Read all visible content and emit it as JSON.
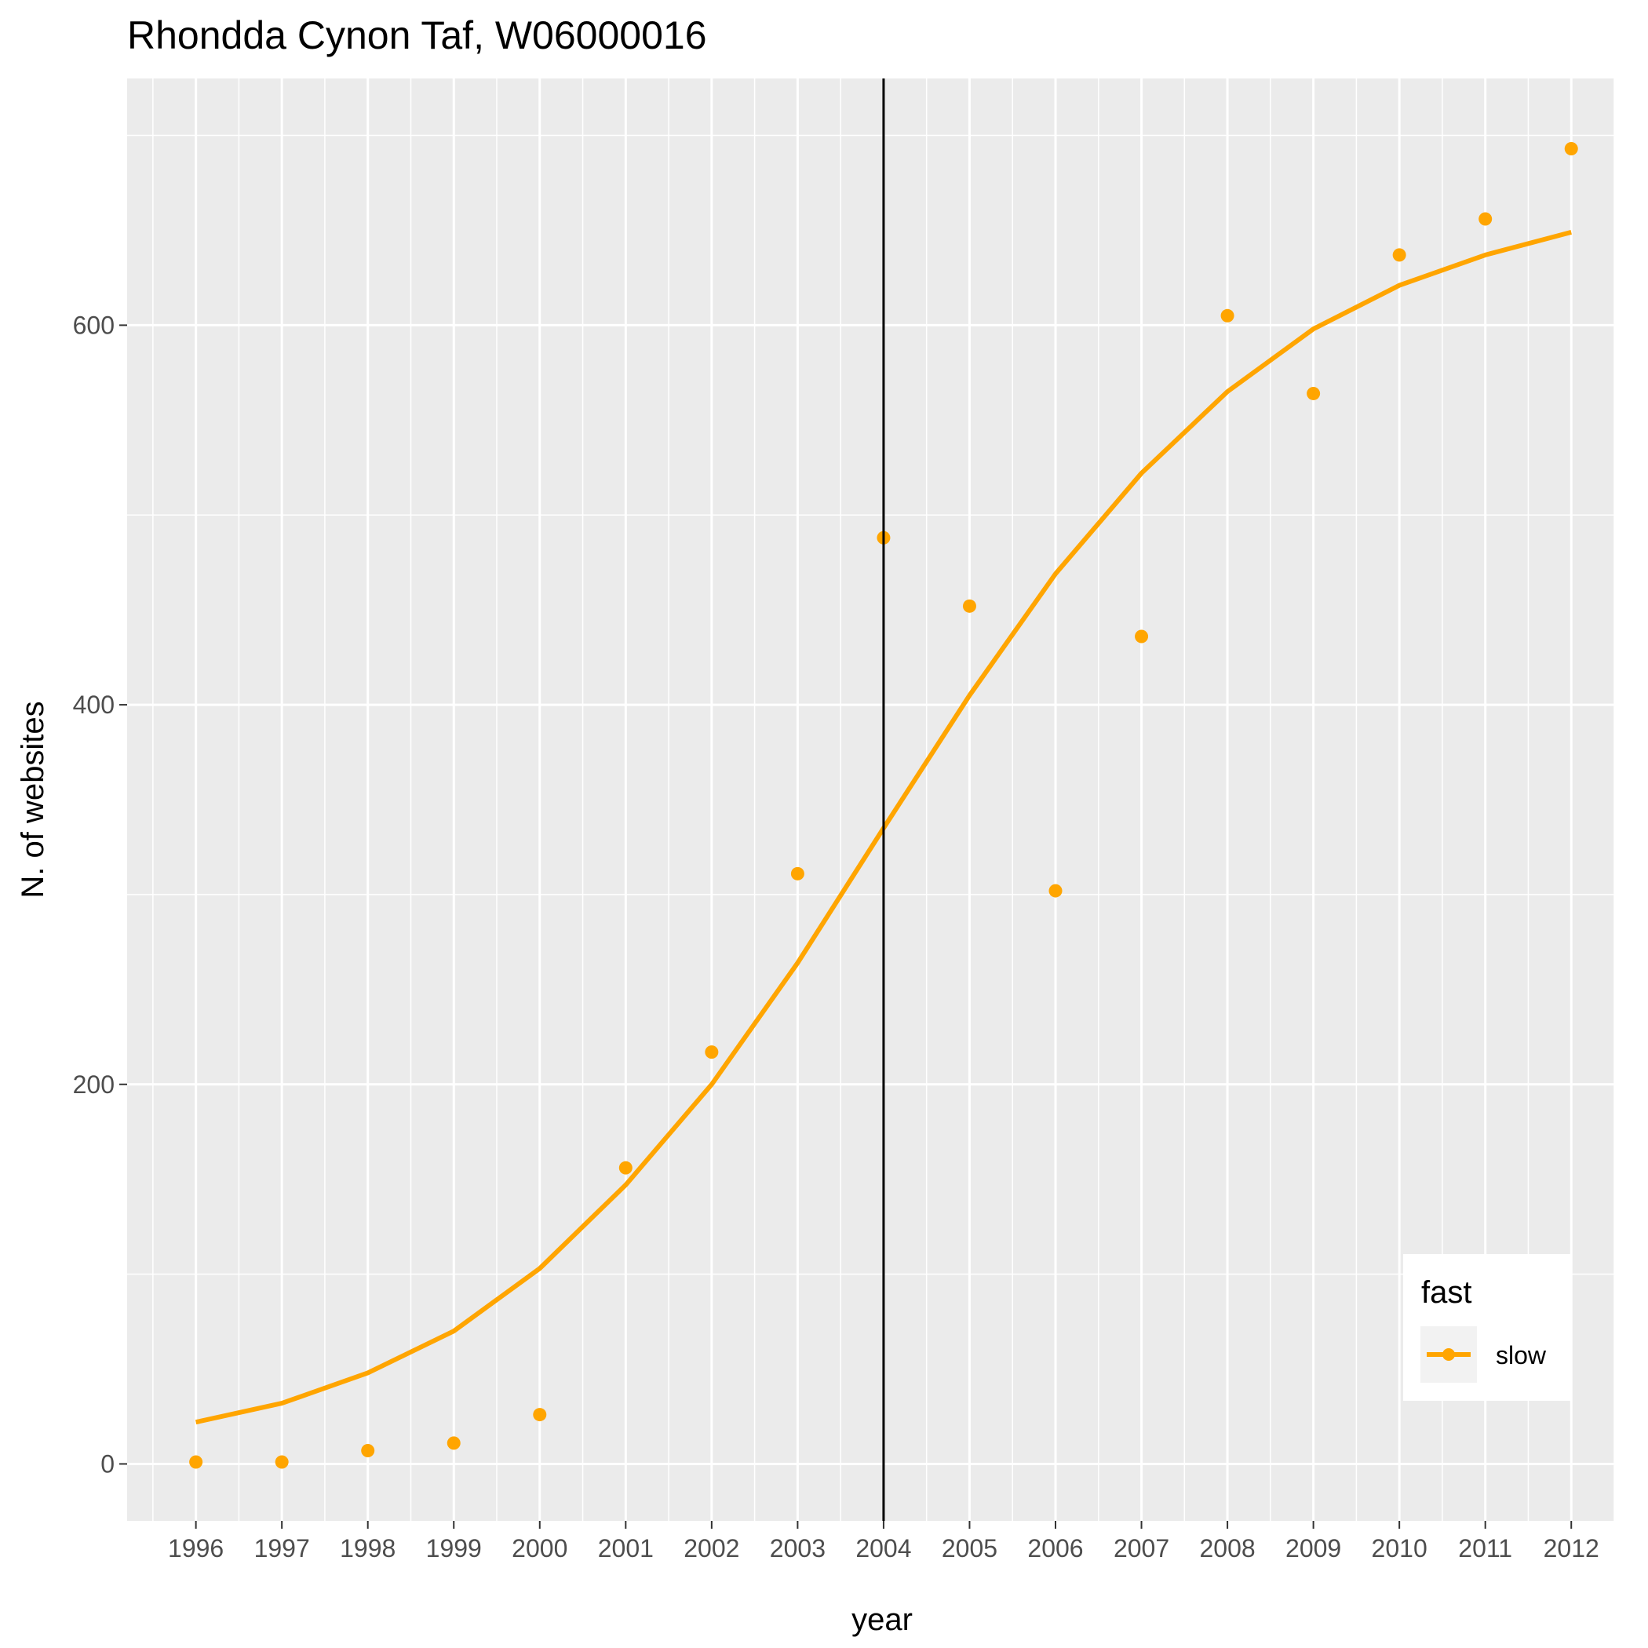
{
  "chart_data": {
    "type": "line",
    "title": "Rhondda Cynon Taf, W06000016",
    "xlabel": "year",
    "ylabel": "N. of websites",
    "x": [
      1996,
      1997,
      1998,
      1999,
      2000,
      2001,
      2002,
      2003,
      2004,
      2005,
      2006,
      2007,
      2008,
      2009,
      2010,
      2011,
      2012
    ],
    "x_tick_labels": [
      "1996",
      "1997",
      "1998",
      "1999",
      "2000",
      "2001",
      "2002",
      "2003",
      "2004",
      "2005",
      "2006",
      "2007",
      "2008",
      "2009",
      "2010",
      "2011",
      "2012"
    ],
    "y_ticks": [
      0,
      200,
      400,
      600
    ],
    "y_tick_labels": [
      "0",
      "200",
      "400",
      "600"
    ],
    "xlim": [
      1995.2,
      2012.5
    ],
    "ylim": [
      -30,
      730
    ],
    "grid": true,
    "background": "#ebebeb",
    "series": [
      {
        "name": "slow",
        "color": "#FFA500",
        "points": [
          1,
          1,
          7,
          11,
          26,
          156,
          217,
          311,
          488,
          452,
          302,
          436,
          605,
          564,
          637,
          656,
          693
        ],
        "trend": [
          22,
          32,
          48,
          70,
          103,
          147,
          200,
          264,
          335,
          405,
          469,
          522,
          565,
          598,
          621,
          637,
          649
        ]
      }
    ],
    "vline_x": 2004,
    "legend": {
      "title": "fast",
      "position": "bottom-right",
      "entries": [
        "slow"
      ]
    }
  }
}
